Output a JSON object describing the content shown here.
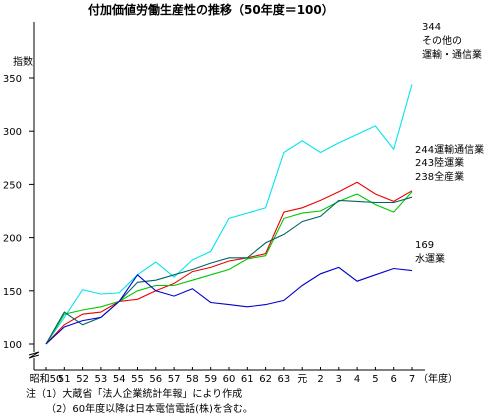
{
  "chart_data": {
    "type": "line",
    "title": "付加価値労働生産性の推移（50年度＝100）",
    "ylabel": "指数",
    "xlabel_suffix": "（年度）",
    "x": [
      "昭和50",
      "51",
      "52",
      "53",
      "54",
      "55",
      "56",
      "57",
      "58",
      "59",
      "60",
      "61",
      "62",
      "63",
      "元",
      "2",
      "3",
      "4",
      "5",
      "6",
      "7"
    ],
    "ylim": [
      100,
      350
    ],
    "yticks": [
      100,
      150,
      200,
      250,
      300,
      350
    ],
    "grid": false,
    "series": [
      {
        "name": "その他の運輸・通信業",
        "label_lines": [
          "その他の",
          "運輸・通信業"
        ],
        "end_value": "344",
        "color": "#00e5ee",
        "values": [
          100,
          125,
          151,
          147,
          148,
          165,
          177,
          163,
          179,
          187,
          218,
          223,
          228,
          280,
          291,
          280,
          289,
          297,
          305,
          283,
          344
        ]
      },
      {
        "name": "運輸通信業",
        "label_lines": [
          "運輸通信業"
        ],
        "end_value": "244",
        "color": "#ee0000",
        "values": [
          100,
          118,
          128,
          130,
          140,
          142,
          150,
          157,
          168,
          172,
          178,
          181,
          185,
          224,
          228,
          235,
          243,
          252,
          241,
          234,
          244
        ]
      },
      {
        "name": "陸運業",
        "label_lines": [
          "陸運業"
        ],
        "end_value": "243",
        "color": "#00c800",
        "values": [
          100,
          128,
          132,
          135,
          140,
          150,
          155,
          155,
          160,
          165,
          170,
          180,
          183,
          218,
          223,
          225,
          234,
          241,
          231,
          224,
          243
        ]
      },
      {
        "name": "全産業",
        "label_lines": [
          "全産業"
        ],
        "end_value": "238",
        "color": "#006464",
        "values": [
          100,
          130,
          118,
          125,
          140,
          158,
          160,
          165,
          170,
          176,
          181,
          181,
          195,
          203,
          215,
          220,
          235,
          234,
          233,
          233,
          238
        ]
      },
      {
        "name": "水運業",
        "label_lines": [
          "水運業"
        ],
        "end_value": "169",
        "color": "#0000cc",
        "values": [
          100,
          116,
          122,
          125,
          140,
          165,
          150,
          145,
          152,
          139,
          137,
          135,
          137,
          141,
          155,
          166,
          172,
          159,
          165,
          171,
          169
        ]
      }
    ],
    "notes": [
      "注（1）大蔵省「法人企業統計年報」により作成",
      "（2）60年度以降は日本電信電話(株)を含む。"
    ]
  }
}
